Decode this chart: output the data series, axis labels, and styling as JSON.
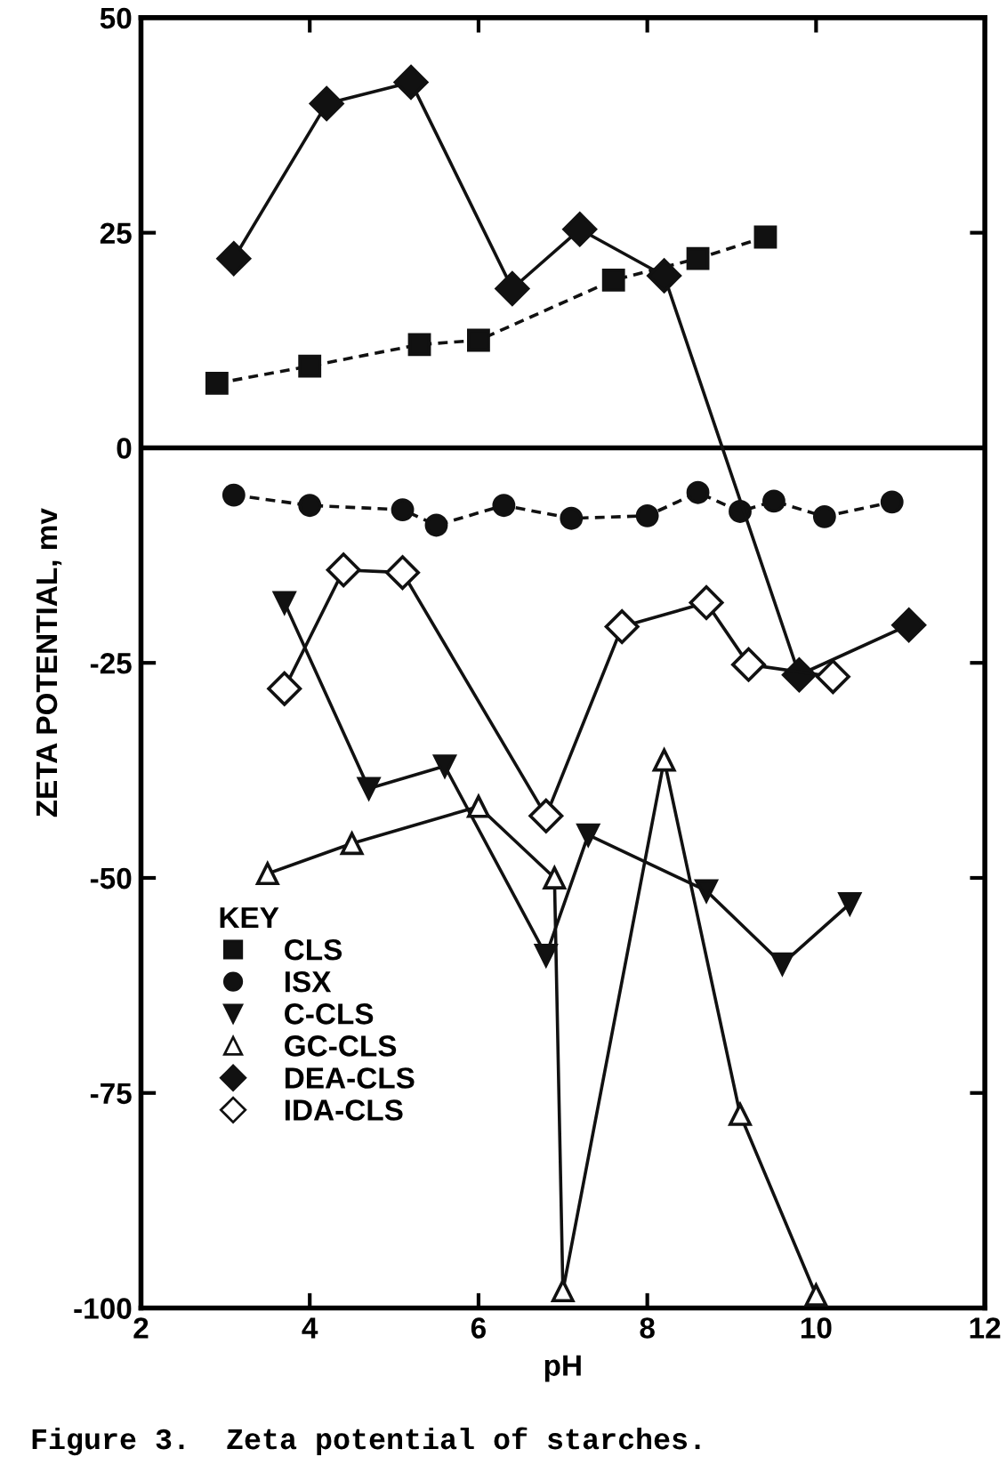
{
  "chart_data": {
    "type": "line",
    "xlabel": "pH",
    "ylabel": "ZETA POTENTIAL, mv",
    "legend_title": "KEY",
    "xlim": [
      2,
      12
    ],
    "xticks": [
      2,
      4,
      6,
      8,
      10,
      12
    ],
    "ylim": [
      -100,
      50
    ],
    "yticks": [
      -100,
      -75,
      -50,
      -25,
      0,
      25,
      50
    ],
    "grid": false,
    "legend": "lower left",
    "ref_lines": [
      {
        "axis": "y",
        "value": 0,
        "color": "#000000",
        "line_style": "solid"
      }
    ],
    "annotations": [
      "Figure 3.  Zeta potential of starches."
    ],
    "series": [
      {
        "name": "CLS",
        "color": "#111111",
        "marker": "square",
        "line_style": "dashed",
        "x": [
          2.9,
          4.0,
          5.3,
          6.0,
          7.6,
          8.6,
          9.4
        ],
        "values": [
          7.5,
          9.5,
          12,
          12.5,
          19.5,
          22,
          24.5
        ]
      },
      {
        "name": "ISX",
        "color": "#111111",
        "marker": "circle",
        "line_style": "dashed",
        "x": [
          3.1,
          4.0,
          5.1,
          5.5,
          6.3,
          7.1,
          8.0,
          8.6,
          9.1,
          9.5,
          10.1,
          10.9
        ],
        "values": [
          -5.5,
          -6.7,
          -7.2,
          -9,
          -6.7,
          -8.2,
          -7.9,
          -5.2,
          -7.4,
          -6.2,
          -8,
          -6.3
        ]
      },
      {
        "name": "C-CLS",
        "color": "#111111",
        "marker": "triangle_down",
        "line_style": "solid",
        "x": [
          3.7,
          4.7,
          5.6,
          6.8,
          7.3,
          8.7,
          9.6,
          10.4
        ],
        "values": [
          -18,
          -39.6,
          -37,
          -59,
          -45,
          -51.5,
          -60,
          -53
        ]
      },
      {
        "name": "GC-CLS",
        "color": "#111111",
        "marker": "triangle_open",
        "line_style": "solid",
        "x": [
          3.5,
          4.5,
          6.0,
          6.9,
          7.0,
          8.2,
          9.1,
          10.0
        ],
        "values": [
          -49.5,
          -46,
          -41.7,
          -50,
          -98,
          -36.3,
          -77.5,
          -98.5
        ]
      },
      {
        "name": "DEA-CLS",
        "color": "#111111",
        "marker": "diamond",
        "line_style": "solid",
        "x": [
          3.1,
          4.2,
          5.2,
          6.4,
          7.2,
          8.2,
          9.8,
          11.1
        ],
        "values": [
          22,
          40,
          42.5,
          18.5,
          25.4,
          20,
          -26.4,
          -20.6
        ]
      },
      {
        "name": "IDA-CLS",
        "color": "#111111",
        "marker": "diamond_open",
        "line_style": "solid",
        "x": [
          3.7,
          4.4,
          5.1,
          6.8,
          7.7,
          8.7,
          9.2,
          10.2
        ],
        "values": [
          -28,
          -14.2,
          -14.5,
          -42.8,
          -20.8,
          -18,
          -25.2,
          -26.6
        ]
      }
    ]
  }
}
